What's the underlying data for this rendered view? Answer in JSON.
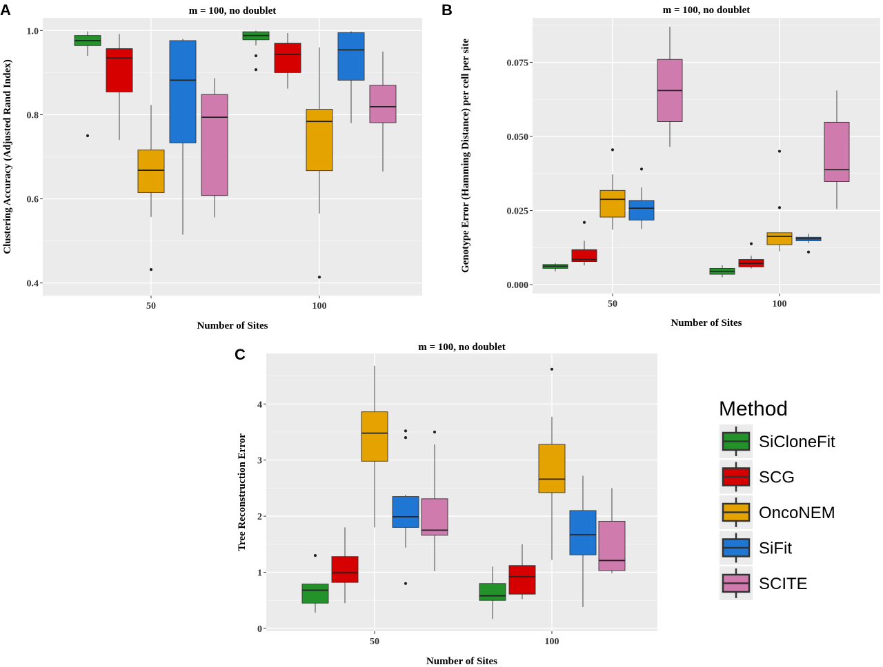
{
  "chart_data": [
    {
      "panel": "A",
      "type": "box",
      "title": "m = 100, no doublet",
      "xlabel": "Number of Sites",
      "ylabel": "Clustering Accuracy (Adjusted Rand Index)",
      "categories": [
        "50",
        "100"
      ],
      "ylim": [
        0.37,
        1.03
      ],
      "yticks": [
        0.4,
        0.6,
        0.8,
        1.0
      ],
      "ytick_labels": [
        "0.4",
        "0.6",
        "0.8",
        "1.0"
      ],
      "series": [
        {
          "name": "SiCloneFit",
          "boxes": [
            {
              "min": 0.94,
              "q1": 0.964,
              "median": 0.976,
              "q3": 0.988,
              "max": 0.998,
              "outliers": [
                0.75
              ]
            },
            {
              "min": 0.965,
              "q1": 0.978,
              "median": 0.988,
              "q3": 0.997,
              "max": 1.0,
              "outliers": [
                0.94,
                0.907
              ]
            }
          ]
        },
        {
          "name": "SCG",
          "boxes": [
            {
              "min": 0.74,
              "q1": 0.854,
              "median": 0.935,
              "q3": 0.957,
              "max": 0.992,
              "outliers": []
            },
            {
              "min": 0.862,
              "q1": 0.9,
              "median": 0.943,
              "q3": 0.97,
              "max": 0.994,
              "outliers": []
            }
          ]
        },
        {
          "name": "OncoNEM",
          "boxes": [
            {
              "min": 0.557,
              "q1": 0.615,
              "median": 0.668,
              "q3": 0.716,
              "max": 0.823,
              "outliers": [
                0.432
              ]
            },
            {
              "min": 0.565,
              "q1": 0.667,
              "median": 0.784,
              "q3": 0.813,
              "max": 0.96,
              "outliers": [
                0.414
              ]
            }
          ]
        },
        {
          "name": "SiFit",
          "boxes": [
            {
              "min": 0.515,
              "q1": 0.733,
              "median": 0.882,
              "q3": 0.976,
              "max": 0.98,
              "outliers": []
            },
            {
              "min": 0.78,
              "q1": 0.882,
              "median": 0.954,
              "q3": 0.995,
              "max": 0.998,
              "outliers": []
            }
          ]
        },
        {
          "name": "SCITE",
          "boxes": [
            {
              "min": 0.556,
              "q1": 0.608,
              "median": 0.794,
              "q3": 0.848,
              "max": 0.887,
              "outliers": []
            },
            {
              "min": 0.665,
              "q1": 0.781,
              "median": 0.819,
              "q3": 0.87,
              "max": 0.95,
              "outliers": []
            }
          ]
        }
      ]
    },
    {
      "panel": "B",
      "type": "box",
      "title": "m = 100, no doublet",
      "xlabel": "Number of Sites",
      "ylabel": "Genotype Error (Hamming Distance) per cell per site",
      "categories": [
        "50",
        "100"
      ],
      "ylim": [
        -0.003,
        0.09
      ],
      "yticks": [
        0.0,
        0.025,
        0.05,
        0.075
      ],
      "ytick_labels": [
        "0.000",
        "0.025",
        "0.050",
        "0.075"
      ],
      "series": [
        {
          "name": "SiCloneFit",
          "boxes": [
            {
              "min": 0.0045,
              "q1": 0.0055,
              "median": 0.0062,
              "q3": 0.0068,
              "max": 0.0072,
              "outliers": []
            },
            {
              "min": 0.0025,
              "q1": 0.0035,
              "median": 0.0045,
              "q3": 0.0055,
              "max": 0.0065,
              "outliers": []
            }
          ]
        },
        {
          "name": "SCG",
          "boxes": [
            {
              "min": 0.0065,
              "q1": 0.0078,
              "median": 0.0085,
              "q3": 0.0118,
              "max": 0.0148,
              "outliers": [
                0.021
              ]
            },
            {
              "min": 0.0055,
              "q1": 0.006,
              "median": 0.0072,
              "q3": 0.0085,
              "max": 0.0098,
              "outliers": [
                0.0138
              ]
            }
          ]
        },
        {
          "name": "OncoNEM",
          "boxes": [
            {
              "min": 0.0185,
              "q1": 0.0228,
              "median": 0.0288,
              "q3": 0.0318,
              "max": 0.0372,
              "outliers": [
                0.0455
              ]
            },
            {
              "min": 0.0112,
              "q1": 0.0135,
              "median": 0.0163,
              "q3": 0.0175,
              "max": 0.0175,
              "outliers": [
                0.045,
                0.026
              ]
            }
          ]
        },
        {
          "name": "SiFit",
          "boxes": [
            {
              "min": 0.0188,
              "q1": 0.0218,
              "median": 0.0258,
              "q3": 0.0284,
              "max": 0.0328,
              "outliers": [
                0.039
              ]
            },
            {
              "min": 0.014,
              "q1": 0.0148,
              "median": 0.0155,
              "q3": 0.016,
              "max": 0.0172,
              "outliers": [
                0.011
              ]
            }
          ]
        },
        {
          "name": "SCITE",
          "boxes": [
            {
              "min": 0.0465,
              "q1": 0.055,
              "median": 0.0655,
              "q3": 0.076,
              "max": 0.087,
              "outliers": []
            },
            {
              "min": 0.0255,
              "q1": 0.0348,
              "median": 0.0388,
              "q3": 0.0548,
              "max": 0.0655,
              "outliers": []
            }
          ]
        }
      ]
    },
    {
      "panel": "C",
      "type": "box",
      "title": "m = 100, no doublet",
      "xlabel": "Number of Sites",
      "ylabel": "Tree Reconstruction Error",
      "categories": [
        "50",
        "100"
      ],
      "ylim": [
        -0.05,
        4.9
      ],
      "yticks": [
        0,
        1,
        2,
        3,
        4
      ],
      "ytick_labels": [
        "0",
        "1",
        "2",
        "3",
        "4"
      ],
      "series": [
        {
          "name": "SiCloneFit",
          "boxes": [
            {
              "min": 0.28,
              "q1": 0.45,
              "median": 0.68,
              "q3": 0.79,
              "max": 0.8,
              "outliers": [
                1.3
              ]
            },
            {
              "min": 0.17,
              "q1": 0.5,
              "median": 0.58,
              "q3": 0.8,
              "max": 1.1,
              "outliers": []
            }
          ]
        },
        {
          "name": "SCG",
          "boxes": [
            {
              "min": 0.45,
              "q1": 0.82,
              "median": 0.99,
              "q3": 1.28,
              "max": 1.8,
              "outliers": []
            },
            {
              "min": 0.52,
              "q1": 0.61,
              "median": 0.92,
              "q3": 1.12,
              "max": 1.5,
              "outliers": []
            }
          ]
        },
        {
          "name": "OncoNEM",
          "boxes": [
            {
              "min": 1.8,
              "q1": 2.98,
              "median": 3.48,
              "q3": 3.86,
              "max": 4.68,
              "outliers": []
            },
            {
              "min": 1.22,
              "q1": 2.42,
              "median": 2.66,
              "q3": 3.28,
              "max": 3.77,
              "outliers": [
                4.62
              ]
            }
          ]
        },
        {
          "name": "SiFit",
          "boxes": [
            {
              "min": 1.44,
              "q1": 1.8,
              "median": 1.99,
              "q3": 2.35,
              "max": 2.38,
              "outliers": [
                3.52,
                3.4,
                0.8
              ]
            },
            {
              "min": 0.38,
              "q1": 1.31,
              "median": 1.67,
              "q3": 2.1,
              "max": 2.72,
              "outliers": []
            }
          ]
        },
        {
          "name": "SCITE",
          "boxes": [
            {
              "min": 1.02,
              "q1": 1.66,
              "median": 1.75,
              "q3": 2.31,
              "max": 3.28,
              "outliers": [
                3.5
              ]
            },
            {
              "min": 0.98,
              "q1": 1.03,
              "median": 1.21,
              "q3": 1.91,
              "max": 2.5,
              "outliers": []
            }
          ]
        }
      ]
    }
  ],
  "legend": {
    "title": "Method",
    "items": [
      "SiCloneFit",
      "SCG",
      "OncoNEM",
      "SiFit",
      "SCITE"
    ],
    "colors": [
      "#23922B",
      "#D70000",
      "#E5A300",
      "#1F77D3",
      "#CF7BAE"
    ]
  }
}
